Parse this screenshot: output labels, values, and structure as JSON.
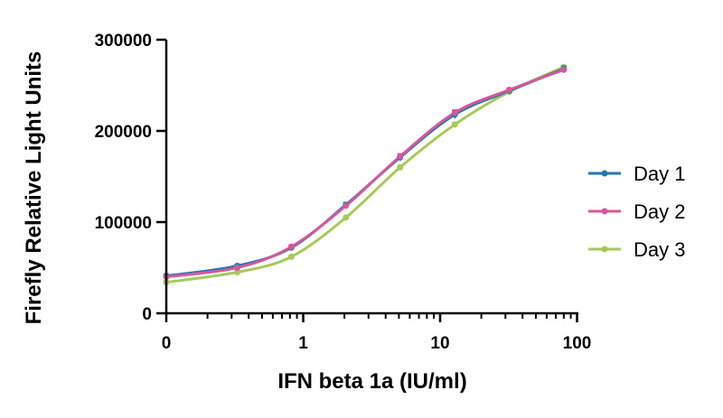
{
  "chart_data": {
    "type": "line",
    "title": "",
    "xlabel": "IFN beta 1a (IU/ml)",
    "ylabel": "Firefly Relative Light Units",
    "x_scale": "log",
    "x_ticks": [
      0,
      1,
      10,
      100
    ],
    "x_tick_labels": [
      "0",
      "1",
      "10",
      "100"
    ],
    "y_ticks": [
      0,
      100000,
      200000,
      300000
    ],
    "y_tick_labels": [
      "0",
      "100000",
      "200000",
      "300000"
    ],
    "ylim": [
      0,
      300000
    ],
    "grid": false,
    "legend_position": "right",
    "x": [
      0,
      0.33,
      0.82,
      2.05,
      5.1,
      12.8,
      32,
      80
    ],
    "series": [
      {
        "name": "Day 1",
        "color": "#1f78b4",
        "values": [
          41000,
          52000,
          72000,
          119000,
          171000,
          218000,
          244000,
          268000
        ],
        "errors": [
          2000,
          1500,
          2500,
          2500,
          4000,
          4500,
          2000,
          3000
        ]
      },
      {
        "name": "Day 2",
        "color": "#d6579b",
        "values": [
          40000,
          50000,
          73000,
          118000,
          172000,
          220000,
          245000,
          267000
        ],
        "errors": [
          1500,
          1500,
          2000,
          2000,
          3000,
          3000,
          2000,
          2500
        ]
      },
      {
        "name": "Day 3",
        "color": "#a6c957",
        "values": [
          34000,
          45000,
          62000,
          105000,
          160000,
          207000,
          243000,
          270000
        ],
        "errors": [
          1000,
          1000,
          1500,
          1500,
          2000,
          2000,
          2000,
          2000
        ]
      }
    ]
  }
}
